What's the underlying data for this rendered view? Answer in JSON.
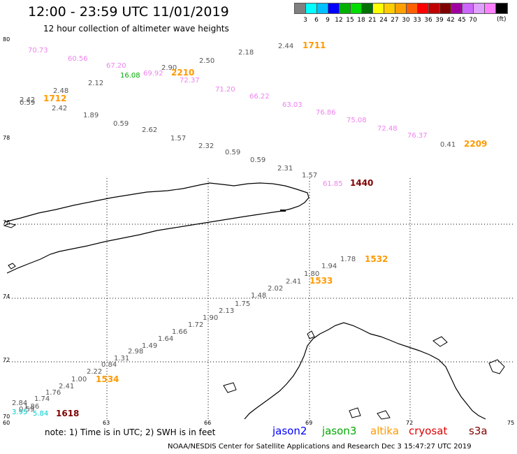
{
  "title": "12:00 - 23:59 UTC 11/01/2019",
  "subtitle": "12 hour collection of altimeter wave heights",
  "colorscale": {
    "unit": "(ft)",
    "colors": [
      "#808080",
      "#00ffff",
      "#00c0ff",
      "#0000ff",
      "#00b000",
      "#00dd00",
      "#007000",
      "#ffff00",
      "#ffcc00",
      "#ffa000",
      "#ff6000",
      "#ff0000",
      "#c00000",
      "#800000",
      "#a000a0",
      "#cc66ff",
      "#e0a0ff",
      "#ff80ff",
      "#000000"
    ],
    "labels": [
      "3",
      "6",
      "9",
      "12",
      "15",
      "18",
      "21",
      "24",
      "27",
      "30",
      "33",
      "36",
      "39",
      "42",
      "45",
      "70"
    ]
  },
  "axes": {
    "lat_labels": [
      "80",
      "78",
      "76",
      "74",
      "72",
      "70"
    ],
    "lon_labels": [
      "60",
      "63",
      "66",
      "69",
      "72",
      "75"
    ]
  },
  "swh_labels": [
    {
      "text": "70.73",
      "color": "#ee82ee"
    },
    {
      "text": "60.56",
      "color": "#ee82ee"
    },
    {
      "text": "67.20",
      "color": "#ee82ee"
    },
    {
      "text": "16.08",
      "color": "#00aa00"
    },
    {
      "text": "69.92",
      "color": "#ee82ee"
    },
    {
      "text": "2.90",
      "color": "#555555"
    },
    {
      "text": "72.37",
      "color": "#ee82ee"
    },
    {
      "text": "2.50",
      "color": "#555555"
    },
    {
      "text": "2.18",
      "color": "#555555"
    },
    {
      "text": "2.44",
      "color": "#555555"
    },
    {
      "text": "71.20",
      "color": "#ee82ee"
    },
    {
      "text": "66.22",
      "color": "#ee82ee"
    },
    {
      "text": "63.03",
      "color": "#ee82ee"
    },
    {
      "text": "76.86",
      "color": "#ee82ee"
    },
    {
      "text": "75.08",
      "color": "#ee82ee"
    },
    {
      "text": "72.48",
      "color": "#ee82ee"
    },
    {
      "text": "76.37",
      "color": "#ee82ee"
    },
    {
      "text": "0.41",
      "color": "#555555"
    },
    {
      "text": "2.48",
      "color": "#555555"
    },
    {
      "text": "2.12",
      "color": "#555555"
    },
    {
      "text": "2.42",
      "color": "#555555"
    },
    {
      "text": "0.59",
      "color": "#555555"
    },
    {
      "text": "2.42",
      "color": "#555555"
    },
    {
      "text": "1.89",
      "color": "#555555"
    },
    {
      "text": "0.59",
      "color": "#555555"
    },
    {
      "text": "2.62",
      "color": "#555555"
    },
    {
      "text": "1.57",
      "color": "#555555"
    },
    {
      "text": "2.32",
      "color": "#555555"
    },
    {
      "text": "0.59",
      "color": "#555555"
    },
    {
      "text": "0.59",
      "color": "#555555"
    },
    {
      "text": "2.31",
      "color": "#555555"
    },
    {
      "text": "1.57",
      "color": "#555555"
    },
    {
      "text": "61.85",
      "color": "#ee82ee"
    },
    {
      "text": "1.78",
      "color": "#555555"
    },
    {
      "text": "1.94",
      "color": "#555555"
    },
    {
      "text": "1.80",
      "color": "#555555"
    },
    {
      "text": "2.41",
      "color": "#555555"
    },
    {
      "text": "2.02",
      "color": "#555555"
    },
    {
      "text": "1.48",
      "color": "#555555"
    },
    {
      "text": "1.75",
      "color": "#555555"
    },
    {
      "text": "2.13",
      "color": "#555555"
    },
    {
      "text": "1.90",
      "color": "#555555"
    },
    {
      "text": "1.72",
      "color": "#555555"
    },
    {
      "text": "1.66",
      "color": "#555555"
    },
    {
      "text": "1.64",
      "color": "#555555"
    },
    {
      "text": "1.49",
      "color": "#555555"
    },
    {
      "text": "2.98",
      "color": "#555555"
    },
    {
      "text": "1.31",
      "color": "#555555"
    },
    {
      "text": "0.84",
      "color": "#555555"
    },
    {
      "text": "2.22",
      "color": "#555555"
    },
    {
      "text": "1.00",
      "color": "#555555"
    },
    {
      "text": "2.41",
      "color": "#555555"
    },
    {
      "text": "1.76",
      "color": "#555555"
    },
    {
      "text": "1.74",
      "color": "#555555"
    },
    {
      "text": "2.84",
      "color": "#555555"
    },
    {
      "text": "1.86",
      "color": "#555555"
    },
    {
      "text": "0.59",
      "color": "#555555"
    },
    {
      "text": "3.95",
      "color": "#00cccc"
    },
    {
      "text": "5.84",
      "color": "#00cccc"
    }
  ],
  "pass_labels": [
    {
      "text": "1711",
      "color": "#ff9900"
    },
    {
      "text": "2210",
      "color": "#ff9900"
    },
    {
      "text": "1712",
      "color": "#ff9900"
    },
    {
      "text": "2209",
      "color": "#ff9900"
    },
    {
      "text": "1440",
      "color": "#800000"
    },
    {
      "text": "1532",
      "color": "#ff9900"
    },
    {
      "text": "1533",
      "color": "#ff9900"
    },
    {
      "text": "1534",
      "color": "#ff9900"
    },
    {
      "text": "1618",
      "color": "#800000"
    }
  ],
  "note": "note: 1) Time is in UTC; 2) SWH is in feet",
  "legend": [
    {
      "text": "jason2",
      "color": "#0000ff"
    },
    {
      "text": "jason3",
      "color": "#00aa00"
    },
    {
      "text": "altika",
      "color": "#ff9900"
    },
    {
      "text": "cryosat",
      "color": "#dd0000"
    },
    {
      "text": "s3a",
      "color": "#800000"
    }
  ],
  "footer": "NOAA/NESDIS Center for Satellite Applications and Research   Dec  3 15:47:27 UTC 2019"
}
